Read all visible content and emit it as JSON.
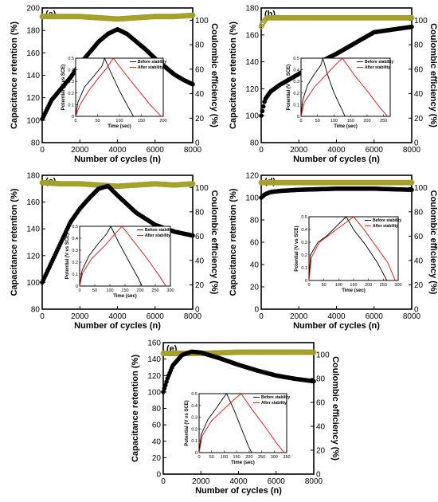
{
  "figure": {
    "panels_count": 5,
    "colors": {
      "retention": "#000000",
      "efficiency": "#a4a12a",
      "before": "#000000",
      "after": "#ff0000"
    }
  },
  "chart_data": [
    {
      "id": "a",
      "panel_label": "(a)",
      "type": "scatter",
      "xlabel": "Number of cycles (n)",
      "ylabel": "Capacitance retention (%)",
      "y2label": "Coulombic efficiency (%)",
      "xlim": [
        0,
        8000
      ],
      "ylim": [
        80,
        200
      ],
      "y2lim": [
        0,
        110
      ],
      "xticks": [
        0,
        2000,
        4000,
        6000,
        8000
      ],
      "yticks": [
        80,
        100,
        120,
        140,
        160,
        180,
        200
      ],
      "y2ticks": [
        0,
        20,
        40,
        60,
        80,
        100
      ],
      "series": [
        {
          "axis": "left",
          "x": [
            0,
            500,
            1000,
            1500,
            2000,
            2500,
            3000,
            3500,
            4000,
            4500,
            5000,
            5500,
            6000,
            6500,
            7000,
            7500,
            8000
          ],
          "values": [
            101,
            118,
            128,
            138,
            150,
            160,
            170,
            177,
            181,
            177,
            170,
            163,
            155,
            148,
            141,
            136,
            132
          ]
        },
        {
          "axis": "right",
          "x": [
            0,
            1000,
            2000,
            3000,
            4000,
            5000,
            6000,
            7000,
            8000
          ],
          "values": [
            103,
            103,
            103,
            102,
            101,
            102,
            103,
            103,
            104
          ]
        }
      ],
      "inset": {
        "type": "line",
        "xlabel": "Time (sec)",
        "ylabel": "Potential (V vs SCE)",
        "xlim": [
          0,
          200
        ],
        "ylim": [
          0,
          0.5
        ],
        "xticks": [
          0,
          50,
          100,
          150,
          200
        ],
        "legend": [
          "Before stability",
          "After stability"
        ],
        "series": [
          {
            "name": "Before stability",
            "x": [
              0,
              5,
              20,
              40,
              60,
              66,
              80,
              100,
              120,
              132
            ],
            "values": [
              0,
              0.12,
              0.25,
              0.34,
              0.43,
              0.5,
              0.38,
              0.22,
              0.08,
              0
            ]
          },
          {
            "name": "After stability",
            "x": [
              0,
              10,
              30,
              50,
              70,
              86,
              110,
              140,
              170,
              195
            ],
            "values": [
              0,
              0.1,
              0.22,
              0.32,
              0.41,
              0.5,
              0.38,
              0.24,
              0.1,
              0
            ]
          }
        ]
      }
    },
    {
      "id": "b",
      "panel_label": "(b)",
      "type": "scatter",
      "xlabel": "Number of cycles (n)",
      "ylabel": "Capacitance retention (%)",
      "y2label": "Coulombic efficiency (%)",
      "xlim": [
        0,
        8000
      ],
      "ylim": [
        80,
        180
      ],
      "y2lim": [
        0,
        110
      ],
      "xticks": [
        0,
        2000,
        4000,
        6000,
        8000
      ],
      "yticks": [
        80,
        100,
        120,
        140,
        160,
        180
      ],
      "y2ticks": [
        0,
        20,
        40,
        60,
        80,
        100
      ],
      "series": [
        {
          "axis": "left",
          "x": [
            0,
            200,
            500,
            1000,
            2000,
            3000,
            4000,
            5000,
            6000,
            7000,
            8000
          ],
          "values": [
            100,
            112,
            118,
            123,
            131,
            139,
            146,
            154,
            162,
            164,
            166
          ]
        },
        {
          "axis": "right",
          "x": [
            0,
            100,
            300,
            1000,
            2000,
            4000,
            6000,
            8000
          ],
          "values": [
            95,
            98,
            102,
            102,
            102,
            102,
            102,
            102
          ]
        }
      ],
      "inset": {
        "type": "line",
        "xlabel": "Time (sec)",
        "ylabel": "Potential (V vs SCE)",
        "xlim": [
          0,
          270
        ],
        "ylim": [
          0,
          0.5
        ],
        "xticks": [
          0,
          50,
          100,
          150,
          200,
          250
        ],
        "legend": [
          "Before stability",
          "After stability"
        ],
        "series": [
          {
            "name": "Before stability",
            "x": [
              0,
              5,
              20,
              40,
              60,
              66,
              80,
              100,
              125,
              133
            ],
            "values": [
              0,
              0.14,
              0.27,
              0.36,
              0.44,
              0.5,
              0.36,
              0.2,
              0.05,
              0
            ]
          },
          {
            "name": "After stability",
            "x": [
              0,
              10,
              40,
              70,
              100,
              125,
              160,
              200,
              240,
              262
            ],
            "values": [
              0,
              0.12,
              0.25,
              0.34,
              0.43,
              0.5,
              0.36,
              0.22,
              0.07,
              0
            ]
          }
        ]
      }
    },
    {
      "id": "c",
      "panel_label": "(c)",
      "type": "scatter",
      "xlabel": "Number of cycles (n)",
      "ylabel": "Capacitance retention (%)",
      "y2label": "Coulombic efficiency (%)",
      "xlim": [
        0,
        8000
      ],
      "ylim": [
        80,
        180
      ],
      "y2lim": [
        0,
        110
      ],
      "xticks": [
        0,
        2000,
        4000,
        6000,
        8000
      ],
      "yticks": [
        80,
        100,
        120,
        140,
        160,
        180
      ],
      "y2ticks": [
        0,
        20,
        40,
        60,
        80,
        100
      ],
      "series": [
        {
          "axis": "left",
          "x": [
            0,
            500,
            1000,
            1500,
            2000,
            2500,
            3000,
            3500,
            4000,
            5000,
            6000,
            7000,
            8000
          ],
          "values": [
            100,
            115,
            130,
            145,
            155,
            163,
            170,
            172,
            165,
            152,
            143,
            138,
            135
          ]
        },
        {
          "axis": "right",
          "x": [
            0,
            1000,
            2000,
            3000,
            4000,
            5000,
            6000,
            7000,
            8000
          ],
          "values": [
            104,
            103,
            103,
            102,
            101,
            102,
            103,
            102,
            103
          ]
        }
      ],
      "inset": {
        "type": "line",
        "xlabel": "Time (sec)",
        "ylabel": "Potential (V vs SCE)",
        "xlim": [
          0,
          300
        ],
        "ylim": [
          0,
          0.5
        ],
        "xticks": [
          0,
          50,
          100,
          150,
          200,
          250,
          300
        ],
        "legend": [
          "Before stability",
          "After stability"
        ],
        "series": [
          {
            "name": "Before stability",
            "x": [
              0,
              8,
              30,
              60,
              90,
              103,
              130,
              160,
              195,
              206
            ],
            "values": [
              0,
              0.13,
              0.25,
              0.35,
              0.44,
              0.5,
              0.36,
              0.22,
              0.06,
              0
            ]
          },
          {
            "name": "After stability",
            "x": [
              0,
              10,
              40,
              80,
              115,
              140,
              180,
              220,
              265,
              285
            ],
            "values": [
              0,
              0.11,
              0.23,
              0.33,
              0.43,
              0.5,
              0.37,
              0.24,
              0.08,
              0
            ]
          }
        ]
      }
    },
    {
      "id": "d",
      "panel_label": "(d)",
      "type": "scatter",
      "xlabel": "Number of cycles (n)",
      "ylabel": "Capacitance retention (%)",
      "y2label": "Coulombic efficiency (%)",
      "xlim": [
        0,
        8000
      ],
      "ylim": [
        0,
        120
      ],
      "y2lim": [
        0,
        110
      ],
      "xticks": [
        0,
        2000,
        4000,
        6000,
        8000
      ],
      "yticks": [
        0,
        20,
        40,
        60,
        80,
        100,
        120
      ],
      "y2ticks": [
        0,
        20,
        40,
        60,
        80,
        100
      ],
      "series": [
        {
          "axis": "left",
          "x": [
            0,
            200,
            500,
            1000,
            2000,
            3000,
            4000,
            5000,
            6000,
            7000,
            8000
          ],
          "values": [
            100,
            103,
            105,
            106,
            107,
            107.5,
            108,
            108,
            108,
            107.5,
            107
          ]
        },
        {
          "axis": "right",
          "x": [
            0,
            200,
            1000,
            2000,
            4000,
            6000,
            8000
          ],
          "values": [
            104,
            104,
            104,
            104,
            104,
            104,
            104
          ]
        }
      ],
      "inset": {
        "type": "line",
        "xlabel": "Time (sec)",
        "ylabel": "Potential (V vs SCE)",
        "xlim": [
          0,
          300
        ],
        "ylim": [
          0,
          0.5
        ],
        "xticks": [
          0,
          50,
          100,
          150,
          200,
          250,
          300
        ],
        "legend": [
          "Before stability",
          "After stability"
        ],
        "series": [
          {
            "name": "Before stability",
            "x": [
              0,
              5,
              30,
              60,
              90,
              125,
              150,
              190,
              230,
              262
            ],
            "values": [
              0,
              0.2,
              0.3,
              0.35,
              0.42,
              0.5,
              0.4,
              0.28,
              0.14,
              0
            ]
          },
          {
            "name": "After stability",
            "x": [
              0,
              8,
              35,
              70,
              110,
              150,
              185,
              225,
              265,
              290
            ],
            "values": [
              0,
              0.18,
              0.3,
              0.36,
              0.43,
              0.5,
              0.4,
              0.27,
              0.14,
              0
            ]
          }
        ]
      }
    },
    {
      "id": "e",
      "panel_label": "(e)",
      "type": "scatter",
      "xlabel": "Number of cycles (n)",
      "ylabel": "Capacitance retention (%)",
      "y2label": "Coulombic efficiency (%)",
      "xlim": [
        0,
        8000
      ],
      "ylim": [
        0,
        160
      ],
      "y2lim": [
        0,
        110
      ],
      "xticks": [
        0,
        2000,
        4000,
        6000,
        8000
      ],
      "yticks": [
        0,
        20,
        40,
        60,
        80,
        100,
        120,
        140,
        160
      ],
      "y2ticks": [
        0,
        20,
        40,
        60,
        80,
        100
      ],
      "series": [
        {
          "axis": "left",
          "x": [
            0,
            250,
            500,
            1000,
            1500,
            2000,
            3000,
            4000,
            5000,
            6000,
            7000,
            8000
          ],
          "values": [
            100,
            118,
            132,
            145,
            149,
            148,
            141,
            133,
            126,
            120,
            116,
            113
          ]
        },
        {
          "axis": "right",
          "x": [
            0,
            1000,
            2000,
            4000,
            6000,
            8000
          ],
          "values": [
            101,
            101,
            101,
            102,
            102,
            102
          ]
        }
      ],
      "inset": {
        "type": "line",
        "xlabel": "Time (sec)",
        "ylabel": "Potential (V vs SCE)",
        "xlim": [
          0,
          350
        ],
        "ylim": [
          0,
          0.5
        ],
        "xticks": [
          0,
          50,
          100,
          150,
          200,
          250,
          300,
          350
        ],
        "legend": [
          "Before stability",
          "After stability"
        ],
        "series": [
          {
            "name": "Before stability",
            "x": [
              0,
              8,
              35,
              70,
              95,
              110,
              140,
              170,
              198,
              210
            ],
            "values": [
              0,
              0.15,
              0.28,
              0.38,
              0.46,
              0.5,
              0.36,
              0.2,
              0.05,
              0
            ]
          },
          {
            "name": "After stability",
            "x": [
              0,
              12,
              50,
              100,
              140,
              168,
              210,
              260,
              310,
              340
            ],
            "values": [
              0,
              0.14,
              0.27,
              0.37,
              0.45,
              0.5,
              0.37,
              0.23,
              0.08,
              0
            ]
          }
        ]
      }
    }
  ]
}
